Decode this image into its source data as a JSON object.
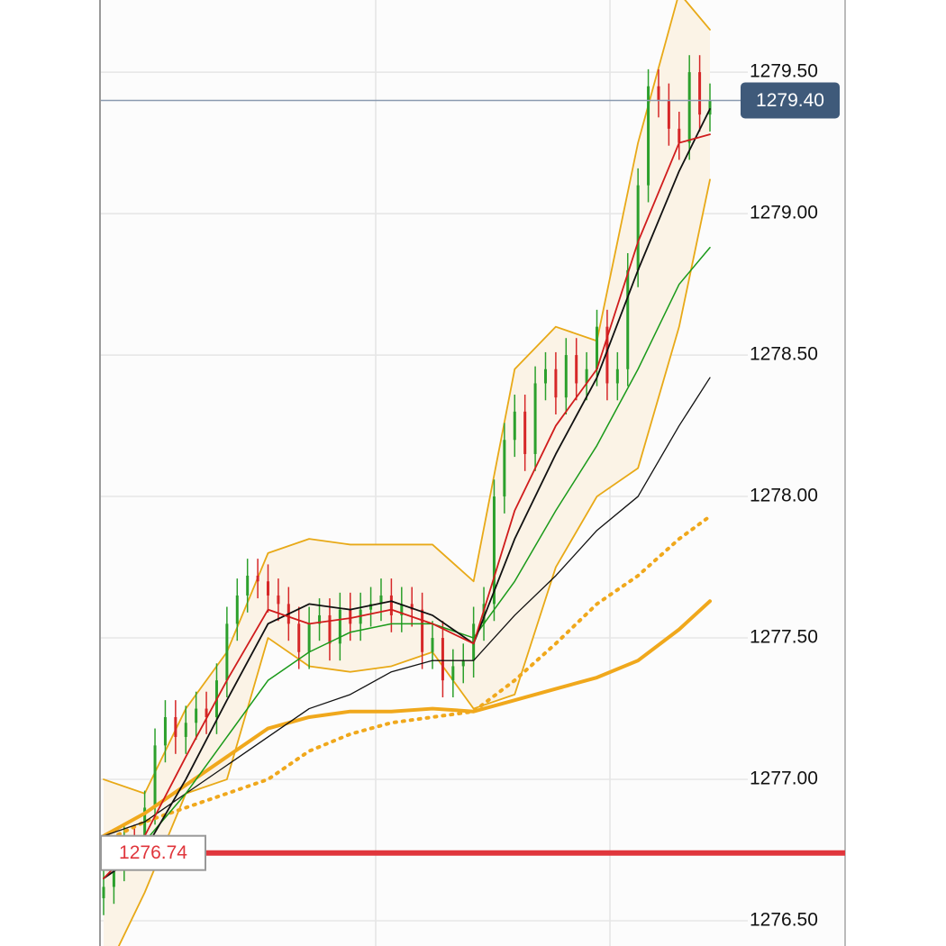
{
  "chart_data": {
    "type": "candlestick",
    "ylim": [
      1276.411,
      1279.755
    ],
    "yticks": [
      {
        "value": 1276.5,
        "label": "1276.50"
      },
      {
        "value": 1277.0,
        "label": "1277.00"
      },
      {
        "value": 1277.5,
        "label": "1277.50"
      },
      {
        "value": 1278.0,
        "label": "1278.00"
      },
      {
        "value": 1278.5,
        "label": "1278.50"
      },
      {
        "value": 1279.0,
        "label": "1279.00"
      },
      {
        "value": 1279.5,
        "label": "1279.50"
      }
    ],
    "grid": true,
    "up_color": "#2ca02c",
    "down_color": "#d62728",
    "open": [
      1276.58,
      1276.62,
      1276.7,
      1276.78,
      1276.75,
      1276.9,
      1277.12,
      1277.22,
      1277.15,
      1277.2,
      1277.25,
      1277.22,
      1277.35,
      1277.55,
      1277.65,
      1277.72,
      1277.7,
      1277.65,
      1277.62,
      1277.55,
      1277.45,
      1277.55,
      1277.58,
      1277.48,
      1277.6,
      1277.55,
      1277.6,
      1277.62,
      1277.65,
      1277.58,
      1277.62,
      1277.6,
      1277.45,
      1277.5,
      1277.35,
      1277.4,
      1277.42,
      1277.55,
      1277.62,
      1278.0,
      1278.2,
      1278.3,
      1278.15,
      1278.4,
      1278.45,
      1278.35,
      1278.5,
      1278.4,
      1278.45,
      1278.6,
      1278.4,
      1278.45,
      1278.8,
      1279.1,
      1279.45,
      1279.4,
      1279.3,
      1279.25,
      1279.5,
      1279.35
    ],
    "high": [
      1276.68,
      1276.76,
      1276.84,
      1276.84,
      1276.96,
      1277.18,
      1277.28,
      1277.28,
      1277.26,
      1277.31,
      1277.31,
      1277.41,
      1277.61,
      1277.71,
      1277.78,
      1277.78,
      1277.76,
      1277.71,
      1277.68,
      1277.61,
      1277.61,
      1277.64,
      1277.64,
      1277.66,
      1277.66,
      1277.66,
      1277.68,
      1277.71,
      1277.71,
      1277.68,
      1277.68,
      1277.66,
      1277.56,
      1277.56,
      1277.46,
      1277.48,
      1277.61,
      1277.68,
      1278.06,
      1278.26,
      1278.36,
      1278.36,
      1278.46,
      1278.51,
      1278.51,
      1278.56,
      1278.56,
      1278.51,
      1278.66,
      1278.66,
      1278.51,
      1278.86,
      1279.16,
      1279.51,
      1279.51,
      1279.46,
      1279.36,
      1279.56,
      1279.56,
      1279.46
    ],
    "low": [
      1276.52,
      1276.56,
      1276.64,
      1276.69,
      1276.69,
      1276.84,
      1277.06,
      1277.09,
      1277.09,
      1277.14,
      1277.16,
      1277.16,
      1277.29,
      1277.49,
      1277.59,
      1277.64,
      1277.59,
      1277.56,
      1277.49,
      1277.39,
      1277.39,
      1277.49,
      1277.42,
      1277.42,
      1277.49,
      1277.49,
      1277.54,
      1277.56,
      1277.52,
      1277.52,
      1277.54,
      1277.39,
      1277.39,
      1277.29,
      1277.29,
      1277.34,
      1277.36,
      1277.49,
      1277.56,
      1277.94,
      1278.14,
      1278.09,
      1278.09,
      1278.34,
      1278.29,
      1278.29,
      1278.34,
      1278.34,
      1278.39,
      1278.34,
      1278.34,
      1278.39,
      1278.74,
      1279.04,
      1279.34,
      1279.24,
      1279.19,
      1279.19,
      1279.29,
      1279.29
    ],
    "close": [
      1276.62,
      1276.7,
      1276.78,
      1276.75,
      1276.9,
      1277.12,
      1277.22,
      1277.15,
      1277.2,
      1277.25,
      1277.22,
      1277.35,
      1277.55,
      1277.65,
      1277.72,
      1277.7,
      1277.65,
      1277.62,
      1277.55,
      1277.45,
      1277.55,
      1277.58,
      1277.48,
      1277.6,
      1277.55,
      1277.6,
      1277.62,
      1277.65,
      1277.58,
      1277.62,
      1277.6,
      1277.45,
      1277.5,
      1277.35,
      1277.4,
      1277.42,
      1277.55,
      1277.62,
      1278.0,
      1278.2,
      1278.3,
      1278.15,
      1278.4,
      1278.45,
      1278.35,
      1278.5,
      1278.4,
      1278.45,
      1278.6,
      1278.4,
      1278.45,
      1278.8,
      1279.1,
      1279.45,
      1279.4,
      1279.3,
      1279.25,
      1279.5,
      1279.35,
      1279.4
    ],
    "overlay_x": [
      0,
      4,
      8,
      12,
      16,
      20,
      24,
      28,
      32,
      36,
      40,
      44,
      48,
      52,
      56,
      59
    ],
    "band_upper": {
      "color": "#e8a917",
      "values": [
        1277.0,
        1276.95,
        1277.25,
        1277.45,
        1277.8,
        1277.85,
        1277.83,
        1277.83,
        1277.83,
        1277.7,
        1278.45,
        1278.6,
        1278.55,
        1279.25,
        1279.78,
        1279.65
      ]
    },
    "band_lower": {
      "color": "#e8a917",
      "values": [
        1276.3,
        1276.6,
        1276.95,
        1277.0,
        1277.5,
        1277.4,
        1277.38,
        1277.4,
        1277.45,
        1277.25,
        1277.3,
        1277.75,
        1278.0,
        1278.1,
        1278.6,
        1279.12
      ]
    },
    "band_fill": "#fbf3e6",
    "series": [
      {
        "color": "#f0a81c",
        "line_width": 4,
        "dash": false,
        "values": [
          1276.8,
          1276.88,
          1276.98,
          1277.08,
          1277.18,
          1277.22,
          1277.24,
          1277.24,
          1277.25,
          1277.24,
          1277.28,
          1277.32,
          1277.36,
          1277.42,
          1277.53,
          1277.63
        ]
      },
      {
        "color": "#f0a81c",
        "line_width": 4,
        "dash": true,
        "values": [
          1276.78,
          1276.85,
          1276.9,
          1276.95,
          1277.0,
          1277.1,
          1277.16,
          1277.2,
          1277.22,
          1277.24,
          1277.35,
          1277.48,
          1277.62,
          1277.72,
          1277.85,
          1277.93
        ]
      },
      {
        "color": "#111111",
        "line_width": 1.3,
        "dash": false,
        "values": [
          1276.8,
          1276.85,
          1276.95,
          1277.05,
          1277.15,
          1277.25,
          1277.3,
          1277.38,
          1277.42,
          1277.42,
          1277.58,
          1277.72,
          1277.88,
          1278.0,
          1278.25,
          1278.42
        ]
      },
      {
        "color": "#1a9a1a",
        "line_width": 1.5,
        "dash": false,
        "values": [
          1276.72,
          1276.78,
          1276.95,
          1277.15,
          1277.35,
          1277.45,
          1277.52,
          1277.55,
          1277.55,
          1277.5,
          1277.7,
          1277.95,
          1278.18,
          1278.45,
          1278.75,
          1278.88
        ]
      },
      {
        "color": "#111111",
        "line_width": 1.8,
        "dash": false,
        "values": [
          1276.65,
          1276.75,
          1277.0,
          1277.28,
          1277.55,
          1277.62,
          1277.6,
          1277.63,
          1277.58,
          1277.48,
          1277.85,
          1278.15,
          1278.42,
          1278.8,
          1279.15,
          1279.37
        ]
      },
      {
        "color": "#d01c1c",
        "line_width": 1.8,
        "dash": false,
        "values": [
          1276.65,
          1276.8,
          1277.08,
          1277.35,
          1277.6,
          1277.55,
          1277.57,
          1277.6,
          1277.55,
          1277.48,
          1277.95,
          1278.25,
          1278.45,
          1278.9,
          1279.25,
          1279.28
        ]
      }
    ],
    "last_price": {
      "value": 1279.4,
      "label": "1279.40",
      "color": "#3f5a7a"
    },
    "level": {
      "value": 1276.74,
      "label": "1276.74",
      "color": "#e0363c"
    }
  }
}
